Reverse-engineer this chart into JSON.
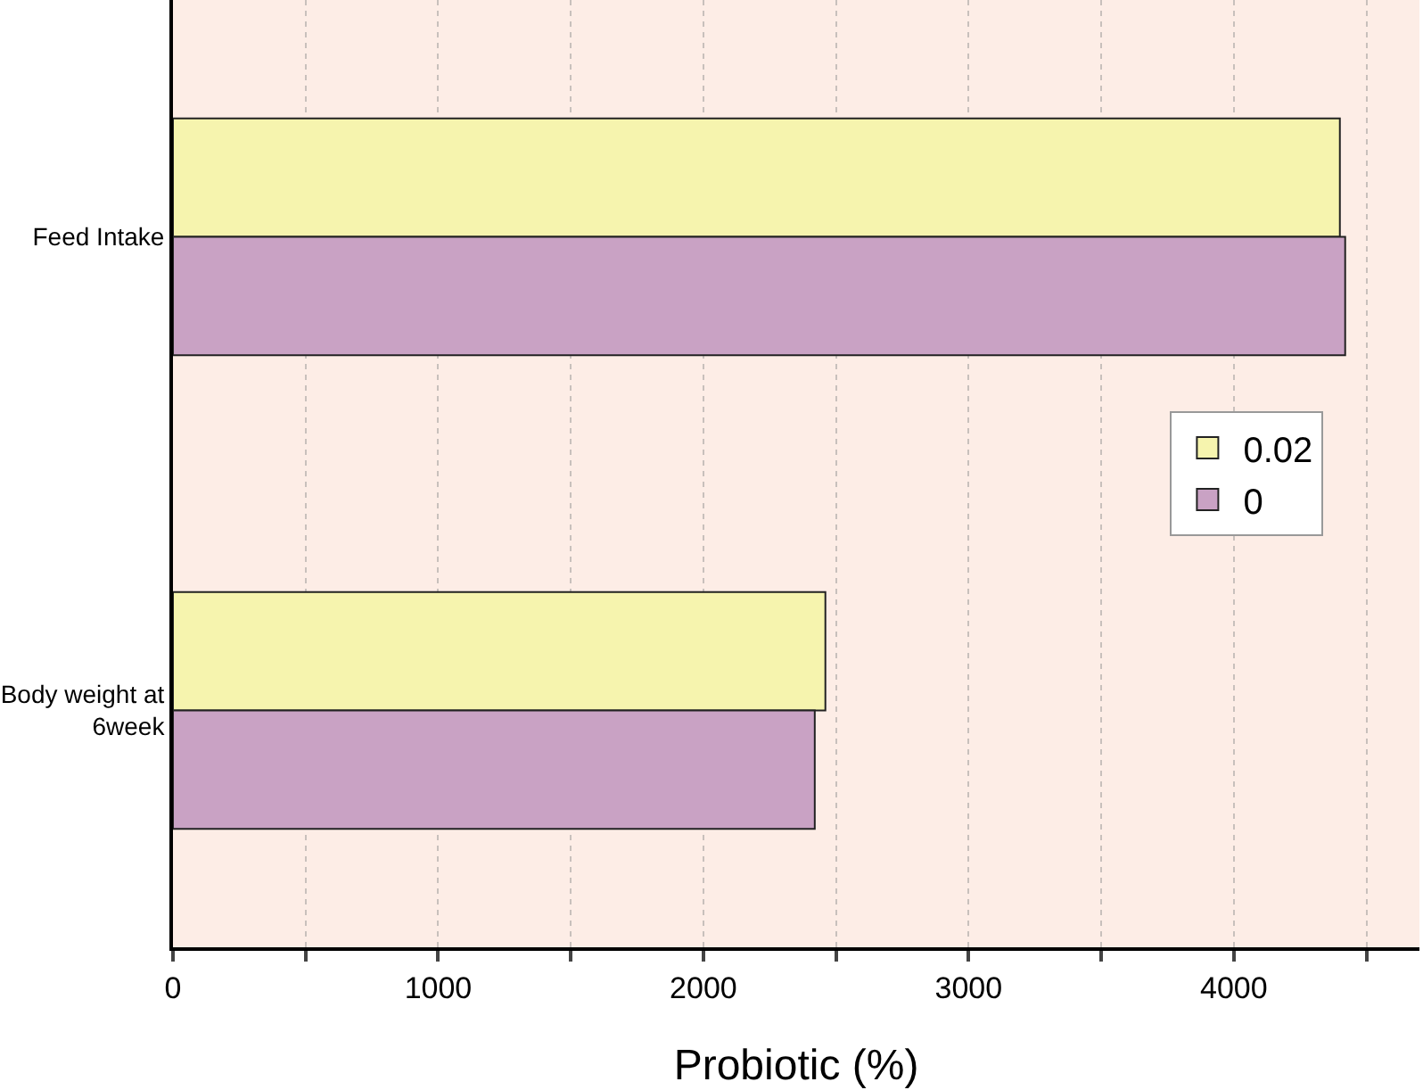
{
  "chart_data": {
    "type": "bar",
    "orientation": "horizontal",
    "xlabel": "Probiotic (%)",
    "categories": [
      "Feed Intake",
      "Body weight at 6week"
    ],
    "series": [
      {
        "name": "0.02",
        "color": "#f6f4ae",
        "values": [
          4400,
          2460
        ]
      },
      {
        "name": "0",
        "color": "#c9a2c4",
        "values": [
          4420,
          2420
        ]
      }
    ],
    "xlim": [
      0,
      4700
    ],
    "xticks": [
      0,
      {
        "value": 500,
        "label": null
      },
      1000,
      {
        "value": 1500,
        "label": null
      },
      2000,
      {
        "value": 2500,
        "label": null
      },
      3000,
      {
        "value": 3500,
        "label": null
      },
      4000,
      {
        "value": 4500,
        "label": null
      }
    ],
    "grid": "x",
    "legend": "right"
  }
}
